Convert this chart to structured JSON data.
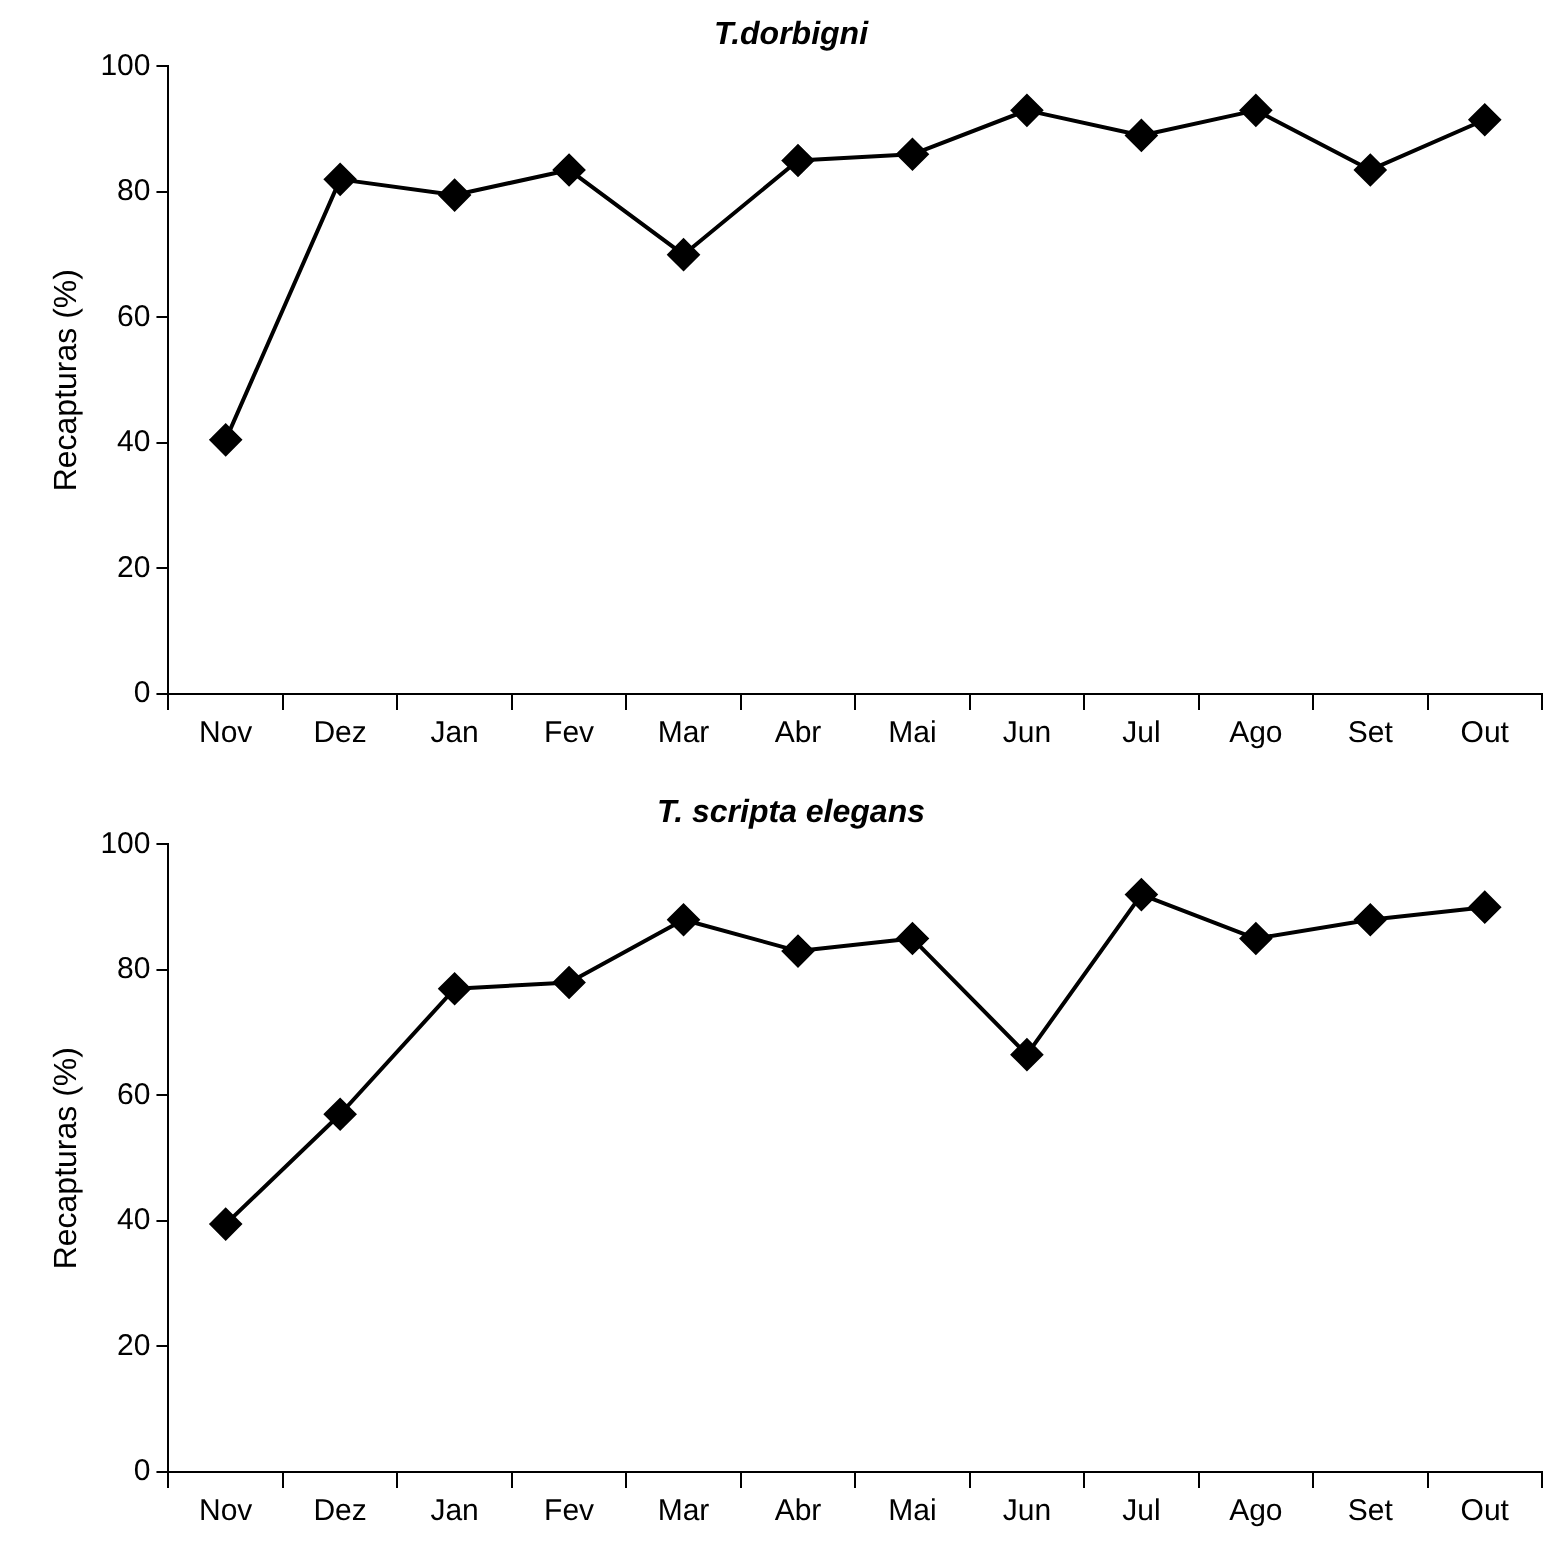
{
  "chart_data": [
    {
      "type": "line",
      "title": "T.dorbigni",
      "ylabel": "Recapturas (%)",
      "categories": [
        "Nov",
        "Dez",
        "Jan",
        "Fev",
        "Mar",
        "Abr",
        "Mai",
        "Jun",
        "Jul",
        "Ago",
        "Set",
        "Out"
      ],
      "values": [
        40.5,
        82,
        79.5,
        83.5,
        70,
        85,
        86,
        93,
        89,
        93,
        83.5,
        91.5
      ],
      "color": "#000000",
      "marker": "diamond",
      "ylim": [
        0,
        100
      ],
      "yticks": [
        0,
        20,
        40,
        60,
        80,
        100
      ]
    },
    {
      "type": "line",
      "title": "T. scripta elegans",
      "ylabel": "Recapturas (%)",
      "categories": [
        "Nov",
        "Dez",
        "Jan",
        "Fev",
        "Mar",
        "Abr",
        "Mai",
        "Jun",
        "Jul",
        "Ago",
        "Set",
        "Out"
      ],
      "values": [
        39.5,
        57,
        77,
        78,
        88,
        83,
        85,
        66.5,
        92,
        85,
        88,
        90
      ],
      "color": "#000000",
      "marker": "diamond",
      "ylim": [
        0,
        100
      ],
      "yticks": [
        0,
        20,
        40,
        60,
        80,
        100
      ]
    }
  ]
}
